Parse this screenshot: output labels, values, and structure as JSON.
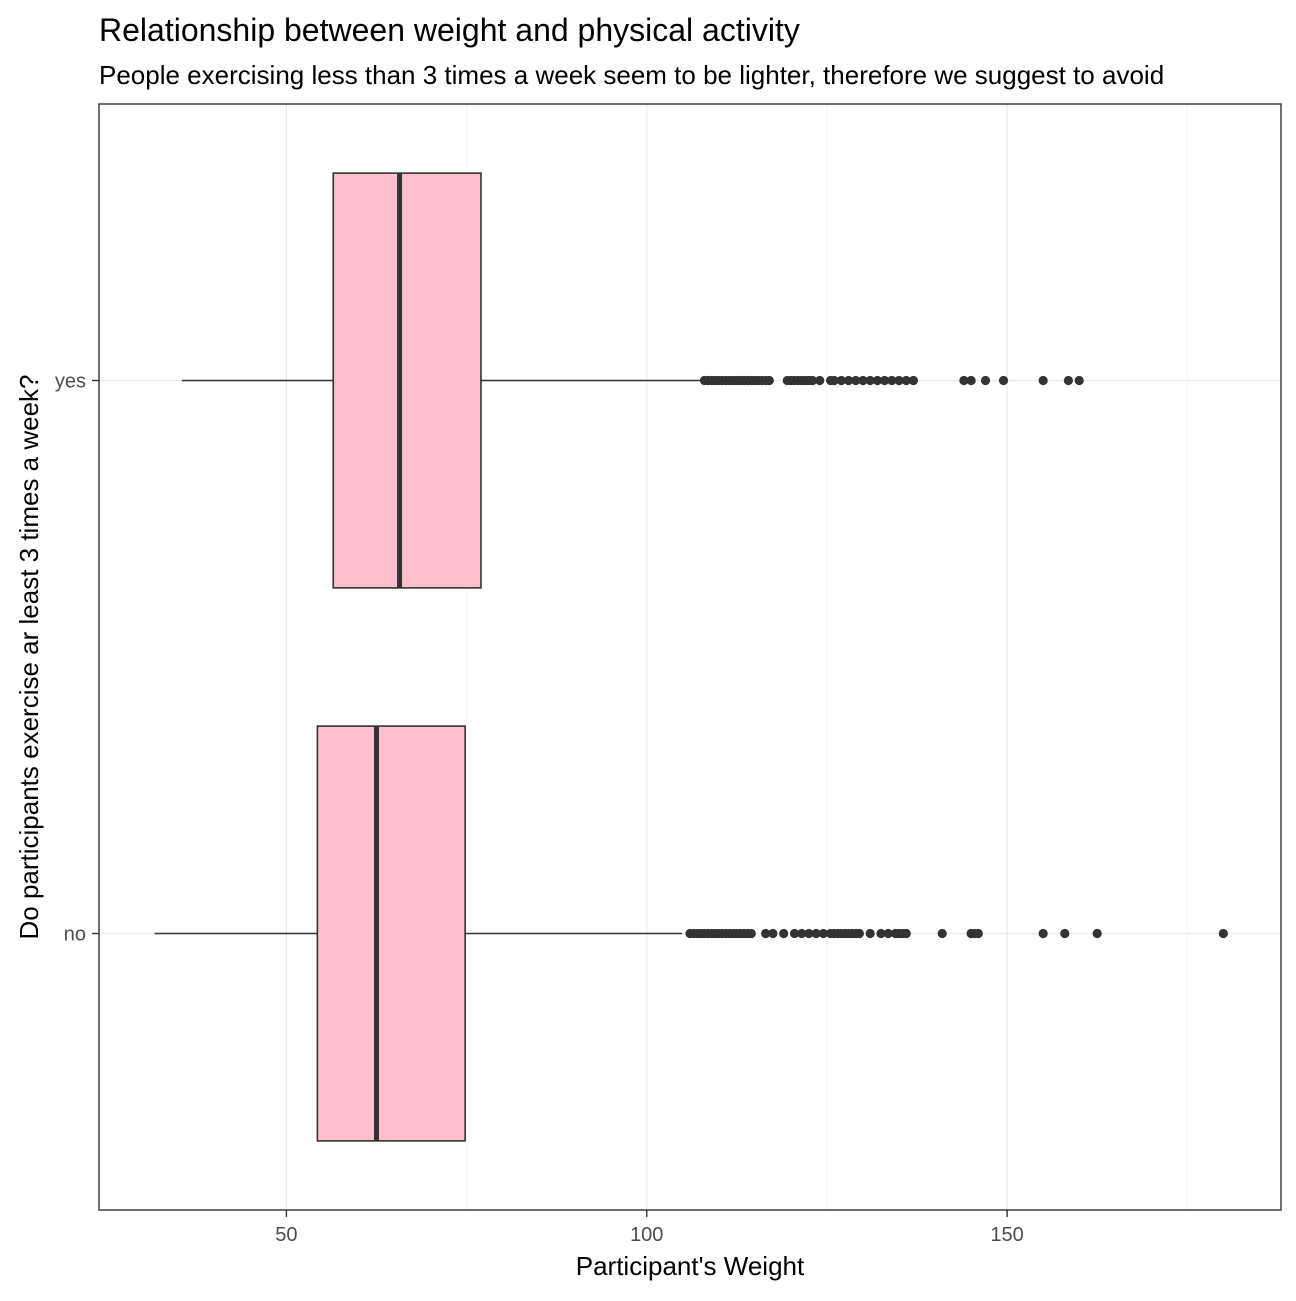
{
  "chart_data": {
    "type": "boxplot",
    "title": "Relationship between weight and physical activity",
    "subtitle": "People exercising less than 3 times a week seem to be lighter, therefore we suggest to avoid",
    "xlabel": "Participant's Weight",
    "ylabel": "Do participants exercise ar least 3 times a week?",
    "xlim": [
      24,
      188
    ],
    "x_ticks": [
      50,
      100,
      150
    ],
    "x_tick_labels": [
      "50",
      "100",
      "150"
    ],
    "x_minor_ticks": [
      75,
      125,
      175
    ],
    "categories": [
      "no",
      "yes"
    ],
    "fill_color": "#FFC0CB",
    "line_color": "#333333",
    "grid": true,
    "legend": "none",
    "series": [
      {
        "category": "yes",
        "whisker_low": 35.5,
        "q1": 56.5,
        "median": 65.7,
        "q3": 77,
        "whisker_high": 107.6,
        "outliers": [
          108,
          108.5,
          109,
          109.5,
          110,
          110.5,
          111,
          111.5,
          112,
          112.5,
          113,
          113.5,
          114,
          114.5,
          115,
          115.5,
          116,
          116.5,
          117,
          119.5,
          120,
          120.5,
          121,
          121.5,
          122,
          122.5,
          123,
          124,
          125.5,
          126,
          127,
          128,
          129,
          130,
          131,
          132,
          133,
          134,
          135,
          136,
          137,
          144,
          145,
          147,
          149.5,
          155,
          158.5,
          160
        ]
      },
      {
        "category": "no",
        "whisker_low": 31.7,
        "q1": 54.3,
        "median": 62.5,
        "q3": 74.8,
        "whisker_high": 104.9,
        "outliers": [
          106,
          106.5,
          107,
          107.5,
          108,
          108.5,
          109,
          109.5,
          110,
          110.5,
          111,
          111.5,
          112,
          112.5,
          113,
          113.5,
          114,
          114.5,
          116.5,
          117.5,
          119,
          120.5,
          121.5,
          122.5,
          123.5,
          124.5,
          125.5,
          126,
          126.5,
          127,
          127.5,
          128,
          128.5,
          129,
          129.5,
          131,
          132.5,
          133.5,
          134.5,
          135,
          135.5,
          136,
          141,
          145,
          145.5,
          146,
          155,
          158,
          162.5,
          180
        ]
      }
    ]
  }
}
